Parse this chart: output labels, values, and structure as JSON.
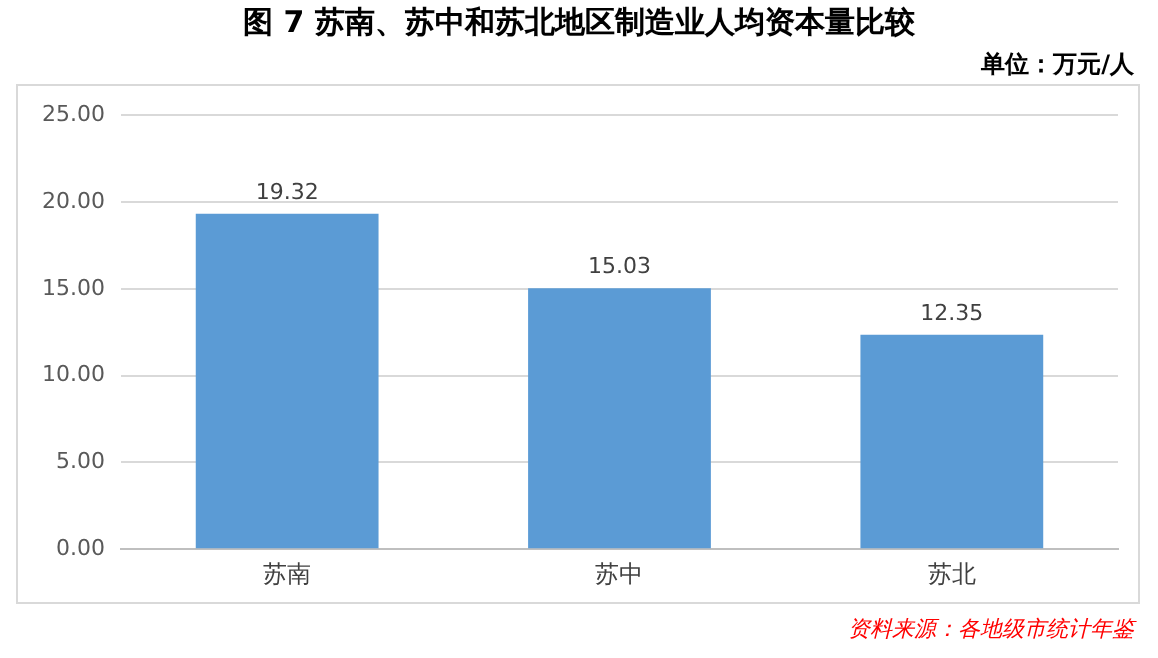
{
  "chart_data": {
    "type": "bar",
    "title": "图 7  苏南、苏中和苏北地区制造业人均资本量比较",
    "subtitle": "单位：万元/人",
    "categories": [
      "苏南",
      "苏中",
      "苏北"
    ],
    "values": [
      19.32,
      15.03,
      12.35
    ],
    "color": "#5b9bd5",
    "ylim": [
      0,
      25
    ],
    "yticks": [
      {
        "value": 0,
        "label": "0.00"
      },
      {
        "value": 5,
        "label": "5.00"
      },
      {
        "value": 10,
        "label": "10.00"
      },
      {
        "value": 15,
        "label": "15.00"
      },
      {
        "value": 20,
        "label": "20.00"
      },
      {
        "value": 25,
        "label": "25.00"
      }
    ],
    "grid": "y",
    "legend": false,
    "data_labels": true,
    "annotations": [
      "资料来源：各地级市统计年鉴"
    ]
  }
}
